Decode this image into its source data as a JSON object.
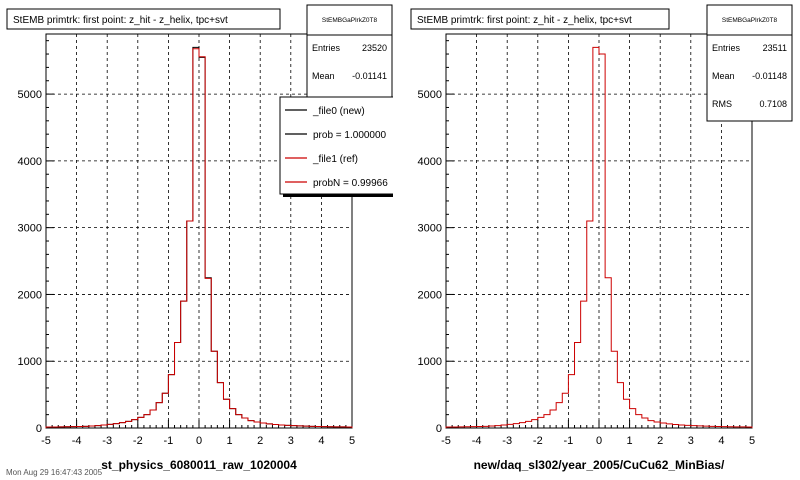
{
  "footer_note": "Mon Aug 29 16:47:43 2005",
  "chart_data": [
    {
      "type": "line",
      "title": "StEMB primtrk: first point: z_hit - z_helix, tpc+svt",
      "xlabel": "st_physics_6080011_raw_1020004",
      "xlim": [
        -5,
        5
      ],
      "ylim": [
        0,
        5900
      ],
      "xticks": [
        "-5",
        "-4",
        "-3",
        "-2",
        "-1",
        "0",
        "1",
        "2",
        "3",
        "4",
        "5"
      ],
      "yticks": [
        "0",
        "1000",
        "2000",
        "3000",
        "4000",
        "5000"
      ],
      "grid": true,
      "stats": {
        "name": "StEMBGaPlrkZ0T8",
        "rows": [
          {
            "label": "Entries",
            "value": "23520"
          },
          {
            "label": "Mean",
            "value": "-0.01141"
          }
        ]
      },
      "legend": {
        "position": "top-right",
        "entries": [
          {
            "label": "_file0 (new)",
            "color": "#000000"
          },
          {
            "label": "prob = 1.000000",
            "color": "#000000"
          },
          {
            "label": "_file1 (ref)",
            "color": "#cc0000"
          },
          {
            "label": "probN = 0.99966",
            "color": "#cc0000"
          }
        ]
      },
      "x": [
        -5.0,
        -4.8,
        -4.6,
        -4.4,
        -4.2,
        -4.0,
        -3.8,
        -3.6,
        -3.4,
        -3.2,
        -3.0,
        -2.8,
        -2.6,
        -2.4,
        -2.2,
        -2.0,
        -1.8,
        -1.6,
        -1.4,
        -1.2,
        -1.0,
        -0.8,
        -0.6,
        -0.4,
        -0.2,
        0.0,
        0.2,
        0.4,
        0.6,
        0.8,
        1.0,
        1.2,
        1.4,
        1.6,
        1.8,
        2.0,
        2.2,
        2.4,
        2.6,
        2.8,
        3.0,
        3.2,
        3.4,
        3.6,
        3.8,
        4.0,
        4.2,
        4.4,
        4.6,
        4.8
      ],
      "series": [
        {
          "name": "_file0 (new)",
          "color": "#000000",
          "values": [
            15,
            15,
            16,
            18,
            20,
            22,
            25,
            30,
            36,
            45,
            55,
            65,
            80,
            100,
            125,
            160,
            200,
            270,
            380,
            520,
            800,
            1280,
            1900,
            3100,
            5700,
            5550,
            2250,
            1150,
            680,
            430,
            290,
            200,
            150,
            110,
            90,
            75,
            62,
            52,
            45,
            40,
            35,
            32,
            28,
            25,
            22,
            20,
            18,
            17,
            16,
            15
          ]
        },
        {
          "name": "_file1 (ref)",
          "color": "#cc0000",
          "values": [
            15,
            15,
            16,
            18,
            20,
            22,
            25,
            30,
            36,
            45,
            55,
            65,
            80,
            100,
            125,
            160,
            200,
            270,
            380,
            520,
            800,
            1280,
            1900,
            3100,
            5680,
            5560,
            2240,
            1150,
            680,
            430,
            290,
            200,
            150,
            110,
            90,
            75,
            62,
            52,
            45,
            40,
            35,
            32,
            28,
            25,
            22,
            20,
            18,
            17,
            16,
            15
          ]
        }
      ]
    },
    {
      "type": "line",
      "title": "StEMB primtrk: first point: z_hit - z_helix, tpc+svt",
      "xlabel": "new/daq_sl302/year_2005/CuCu62_MinBias/",
      "xlim": [
        -5,
        5
      ],
      "ylim": [
        0,
        5900
      ],
      "xticks": [
        "-5",
        "-4",
        "-3",
        "-2",
        "-1",
        "0",
        "1",
        "2",
        "3",
        "4",
        "5"
      ],
      "yticks": [
        "0",
        "1000",
        "2000",
        "3000",
        "4000",
        "5000"
      ],
      "grid": true,
      "stats": {
        "name": "StEMBGaPlrkZ0T8",
        "rows": [
          {
            "label": "Entries",
            "value": "23511"
          },
          {
            "label": "Mean",
            "value": "-0.01148"
          },
          {
            "label": "RMS",
            "value": "0.7108"
          }
        ]
      },
      "x": [
        -5.0,
        -4.8,
        -4.6,
        -4.4,
        -4.2,
        -4.0,
        -3.8,
        -3.6,
        -3.4,
        -3.2,
        -3.0,
        -2.8,
        -2.6,
        -2.4,
        -2.2,
        -2.0,
        -1.8,
        -1.6,
        -1.4,
        -1.2,
        -1.0,
        -0.8,
        -0.6,
        -0.4,
        -0.2,
        0.0,
        0.2,
        0.4,
        0.6,
        0.8,
        1.0,
        1.2,
        1.4,
        1.6,
        1.8,
        2.0,
        2.2,
        2.4,
        2.6,
        2.8,
        3.0,
        3.2,
        3.4,
        3.6,
        3.8,
        4.0,
        4.2,
        4.4,
        4.6,
        4.8
      ],
      "series": [
        {
          "color": "#cc0000",
          "values": [
            15,
            15,
            16,
            18,
            20,
            22,
            25,
            30,
            36,
            45,
            55,
            65,
            80,
            100,
            125,
            160,
            200,
            270,
            380,
            520,
            800,
            1280,
            1900,
            3100,
            5700,
            5600,
            2250,
            1150,
            680,
            430,
            290,
            200,
            150,
            110,
            90,
            75,
            62,
            52,
            45,
            40,
            35,
            32,
            28,
            25,
            22,
            20,
            18,
            17,
            16,
            15
          ]
        }
      ]
    }
  ]
}
